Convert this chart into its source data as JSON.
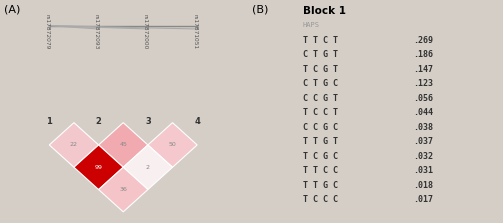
{
  "background_color": "#d4cec6",
  "panel_A": {
    "snp_labels": [
      "rs17872079",
      "rs17872093",
      "rs17872000",
      "rs17871051"
    ],
    "snp_numbers": [
      "1",
      "2",
      "3",
      "4"
    ],
    "pairs": {
      "0-1": {
        "val": 22,
        "color": "#f4c4c8"
      },
      "1-2": {
        "val": 45,
        "color": "#f0a0a8"
      },
      "2-3": {
        "val": 50,
        "color": "#f4c4c8"
      },
      "0-2": {
        "val": 99,
        "color": "#cc0000"
      },
      "1-3": {
        "val": 2,
        "color": "#ffffff"
      },
      "0-3": {
        "val": 36,
        "color": "#f4c4c8"
      }
    }
  },
  "panel_B": {
    "title": "Block 1",
    "subtitle": "HAPS",
    "haplotypes": [
      "TTCT .269",
      "CTGT .186",
      "TCGT .147",
      "CTGC .123",
      "CCGT .056",
      "TCCT .044",
      "CCGC .038",
      "TTGT .037",
      "TCGC .032",
      "TTCC .031",
      "TTGC .018",
      "TCCC .017"
    ]
  }
}
